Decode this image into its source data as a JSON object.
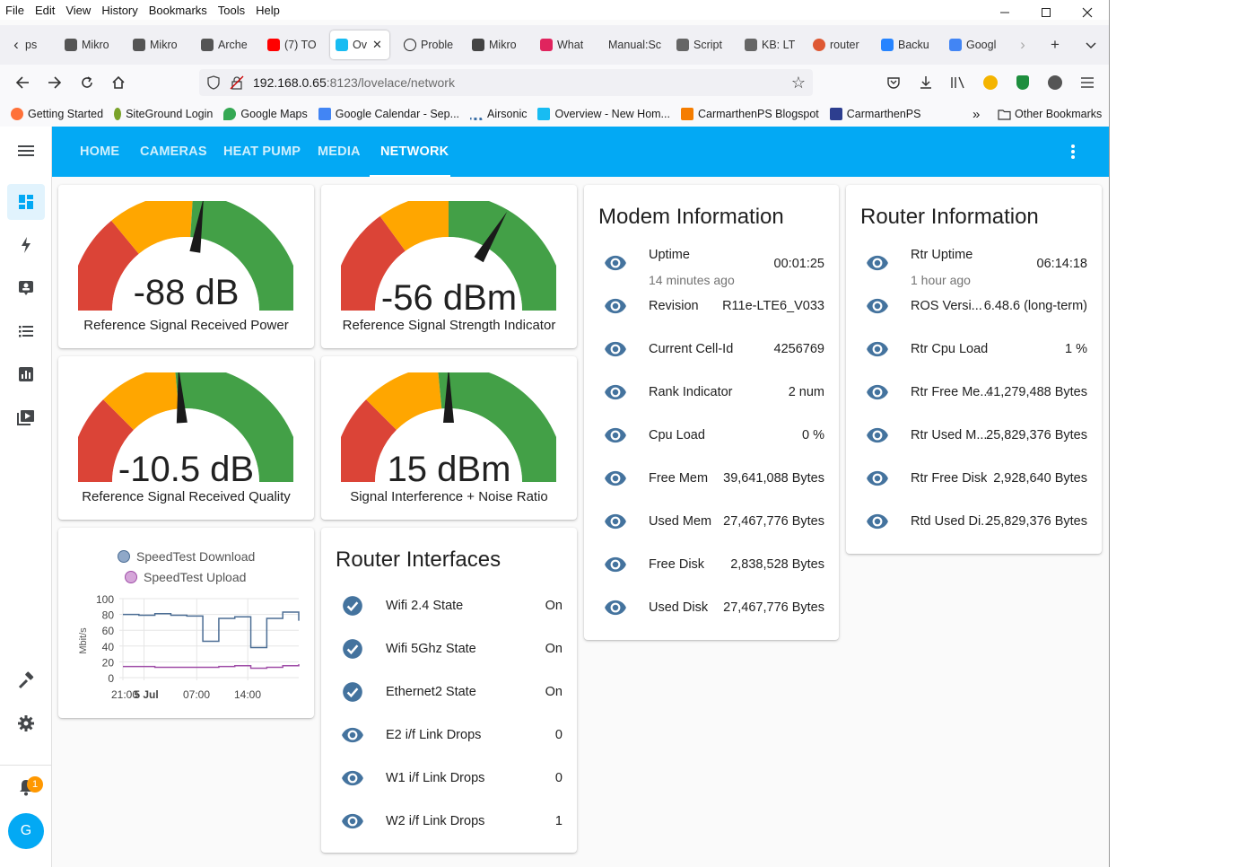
{
  "menu": [
    "File",
    "Edit",
    "View",
    "History",
    "Bookmarks",
    "Tools",
    "Help"
  ],
  "tabs": [
    {
      "label": "ps",
      "color": "#999999"
    },
    {
      "label": "Mikro",
      "color": "#555555"
    },
    {
      "label": "Mikro",
      "color": "#555555"
    },
    {
      "label": "Arche",
      "color": "#555555"
    },
    {
      "label": "(7) TO",
      "color": "#ff0000"
    },
    {
      "label": "Ov",
      "color": "#18bcf2",
      "active": true
    },
    {
      "label": "Proble",
      "color": "#222222"
    },
    {
      "label": "Mikro",
      "color": "#444444"
    },
    {
      "label": "What",
      "color": "#e0245e"
    },
    {
      "label": "Manual:Sc",
      "color": "#ffffff"
    },
    {
      "label": "Script",
      "color": "#666666"
    },
    {
      "label": "KB: LT",
      "color": "#666666"
    },
    {
      "label": "router",
      "color": "#de5833"
    },
    {
      "label": "Backu",
      "color": "#2684ff"
    },
    {
      "label": "Googl",
      "color": "#4285f4"
    }
  ],
  "url": {
    "host": "192.168.0.65",
    "path": ":8123/lovelace/network"
  },
  "bookmarks": [
    {
      "label": "Getting Started",
      "color": "#ff7139"
    },
    {
      "label": "SiteGround Login",
      "color": "#7aa32a"
    },
    {
      "label": "Google Maps",
      "color": "#34a853"
    },
    {
      "label": "Google Calendar - Sep...",
      "color": "#4285f4"
    },
    {
      "label": "Airsonic",
      "color": "#3a6ea5"
    },
    {
      "label": "Overview - New Hom...",
      "color": "#18bcf2"
    },
    {
      "label": "CarmarthenPS Blogspot",
      "color": "#f57d00"
    },
    {
      "label": "CarmarthenPS",
      "color": "#2d3e8f"
    }
  ],
  "other_bookmarks": "Other Bookmarks",
  "ha_tabs": [
    "HOME",
    "CAMERAS",
    "HEAT PUMP",
    "MEDIA",
    "NETWORK"
  ],
  "gauges": [
    {
      "value": "-88 dB",
      "name": "Reference Signal Received Power",
      "needle": 0.55
    },
    {
      "value": "-56 dBm",
      "name": "Reference Signal Strength Indicator",
      "needle": 0.67
    },
    {
      "value": "-10.5 dB",
      "name": "Reference Signal Received Quality",
      "needle": 0.48
    },
    {
      "value": "15 dBm",
      "name": "Signal Interference + Noise Ratio",
      "needle": 0.5
    }
  ],
  "speedtest": {
    "legend": [
      "SpeedTest Download",
      "SpeedTest Upload"
    ],
    "ylabel": "Mbit/s",
    "yticks": [
      "100",
      "80",
      "60",
      "40",
      "20",
      "0"
    ],
    "xticks": [
      "21:00",
      "5 Jul",
      "07:00",
      "14:00"
    ]
  },
  "chart_data": {
    "type": "line",
    "title": "",
    "xlabel": "",
    "ylabel": "Mbit/s",
    "ylim": [
      0,
      100
    ],
    "x": [
      0,
      2,
      4,
      6,
      8,
      10,
      12,
      14,
      16,
      18,
      20,
      22
    ],
    "series": [
      {
        "name": "SpeedTest Download",
        "values": [
          80,
          79,
          81,
          79,
          78,
          46,
          75,
          77,
          38,
          75,
          83,
          72
        ]
      },
      {
        "name": "SpeedTest Upload",
        "values": [
          14,
          14,
          13,
          13,
          13,
          13,
          14,
          15,
          12,
          13,
          15,
          17
        ]
      }
    ]
  },
  "router_interfaces": {
    "title": "Router Interfaces",
    "rows": [
      {
        "name": "Wifi 2.4 State",
        "value": "On",
        "icon": "check"
      },
      {
        "name": "Wifi 5Ghz State",
        "value": "On",
        "icon": "check"
      },
      {
        "name": "Ethernet2 State",
        "value": "On",
        "icon": "check"
      },
      {
        "name": "E2 i/f Link Drops",
        "value": "0",
        "icon": "eye"
      },
      {
        "name": "W1 i/f Link Drops",
        "value": "0",
        "icon": "eye"
      },
      {
        "name": "W2 i/f Link Drops",
        "value": "1",
        "icon": "eye"
      }
    ]
  },
  "modem": {
    "title": "Modem Information",
    "rows": [
      {
        "name": "Uptime",
        "sub": "14 minutes ago",
        "value": "00:01:25"
      },
      {
        "name": "Revision",
        "value": "R11e-LTE6_V033"
      },
      {
        "name": "Current Cell-Id",
        "value": "4256769"
      },
      {
        "name": "Rank Indicator",
        "value": "2 num"
      },
      {
        "name": "Cpu Load",
        "value": "0 %"
      },
      {
        "name": "Free Mem",
        "value": "39,641,088 Bytes"
      },
      {
        "name": "Used Mem",
        "value": "27,467,776 Bytes"
      },
      {
        "name": "Free Disk",
        "value": "2,838,528 Bytes"
      },
      {
        "name": "Used Disk",
        "value": "27,467,776 Bytes"
      }
    ]
  },
  "router": {
    "title": "Router Information",
    "rows": [
      {
        "name": "Rtr Uptime",
        "sub": "1 hour ago",
        "value": "06:14:18"
      },
      {
        "name": "ROS Versi...",
        "value": "6.48.6 (long-term)"
      },
      {
        "name": "Rtr Cpu Load",
        "value": "1 %"
      },
      {
        "name": "Rtr Free Me...",
        "value": "41,279,488 Bytes"
      },
      {
        "name": "Rtr Used M...",
        "value": "25,829,376 Bytes"
      },
      {
        "name": "Rtr Free Disk",
        "value": "2,928,640 Bytes"
      },
      {
        "name": "Rtd Used Di...",
        "value": "25,829,376 Bytes"
      }
    ]
  },
  "notification_count": "1",
  "avatar_initial": "G",
  "colors": {
    "header": "#03a9f4",
    "icon": "#44739e",
    "gauge_red": "#db4437",
    "gauge_orange": "#ffa600",
    "gauge_green": "#43a047"
  }
}
